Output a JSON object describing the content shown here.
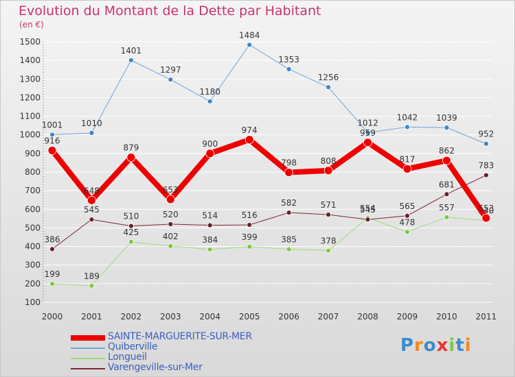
{
  "chart_data": {
    "type": "line",
    "title": "Evolution du Montant de la Dette par Habitant",
    "subtitle": "(en €)",
    "categories": [
      "2000",
      "2001",
      "2002",
      "2003",
      "2004",
      "2005",
      "2006",
      "2007",
      "2008",
      "2009",
      "2010",
      "2011"
    ],
    "ylim": [
      100,
      1500
    ],
    "yticks": [
      100,
      200,
      300,
      400,
      500,
      600,
      700,
      800,
      900,
      1000,
      1100,
      1200,
      1300,
      1400,
      1500
    ],
    "grid": "horizontal",
    "series": [
      {
        "name": "Quiberville",
        "color": "#6fa3d8",
        "marker": "#3a86cc",
        "width": 1,
        "values": [
          1001,
          1010,
          1401,
          1297,
          1180,
          1484,
          1353,
          1256,
          1012,
          1042,
          1039,
          952
        ]
      },
      {
        "name": "Longueil",
        "color": "#99dd77",
        "marker": "#7cc940",
        "width": 1,
        "values": [
          199,
          189,
          425,
          402,
          384,
          399,
          385,
          378,
          554,
          478,
          557,
          540
        ]
      },
      {
        "name": "Varengeville-sur-Mer",
        "color": "#7a2630",
        "marker": "#6b1f28",
        "width": 1,
        "values": [
          386,
          545,
          510,
          520,
          514,
          516,
          582,
          571,
          545,
          565,
          681,
          783
        ]
      },
      {
        "name": "SAINTE-MARGUERITE-SUR-MER",
        "color": "#ee0000",
        "marker": "#ee0000",
        "width": 8,
        "values": [
          916,
          648,
          879,
          653,
          900,
          974,
          798,
          808,
          959,
          817,
          862,
          553
        ]
      }
    ],
    "legend_position": "bottom-left"
  },
  "logo": {
    "text": "Proxiti",
    "letters": [
      "P",
      "r",
      "o",
      "x",
      "i",
      "t",
      "i"
    ],
    "colors": [
      "#3a8ccd",
      "#f08a24",
      "#3a8ccd",
      "#e8352f",
      "#7cc940",
      "#3a8ccd",
      "#f08a24"
    ]
  }
}
